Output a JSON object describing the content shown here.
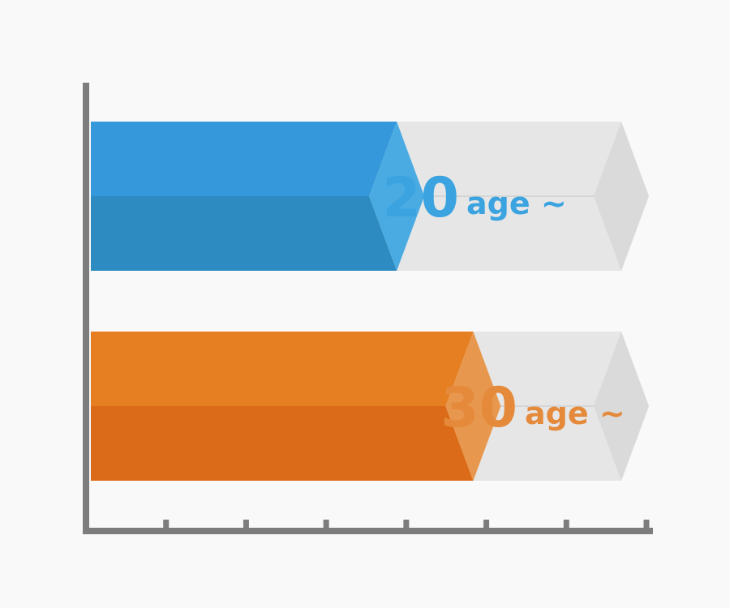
{
  "chart_data": {
    "type": "bar",
    "orientation": "horizontal",
    "title": "",
    "xlabel": "",
    "ylabel": "",
    "xlim": [
      0,
      7
    ],
    "x_ticks": 7,
    "grid": false,
    "series": [
      {
        "value": 4,
        "max": 7,
        "number": "20",
        "unit": "age ~",
        "colors": {
          "top": "#3598db",
          "bottom": "#2e8bc2",
          "tip": "#4aabe2",
          "text": "#3aa3e0"
        }
      },
      {
        "value": 5,
        "max": 7,
        "number": "30",
        "unit": "age ~",
        "colors": {
          "top": "#e67f22",
          "bottom": "#db6b18",
          "tip": "#e8984e",
          "text": "#e5893a"
        }
      }
    ],
    "colors": {
      "track": "#e6e6e6",
      "track_tip": "#dadada",
      "track_line": "#cfcfcf",
      "axis": "#7d7d7d"
    }
  }
}
